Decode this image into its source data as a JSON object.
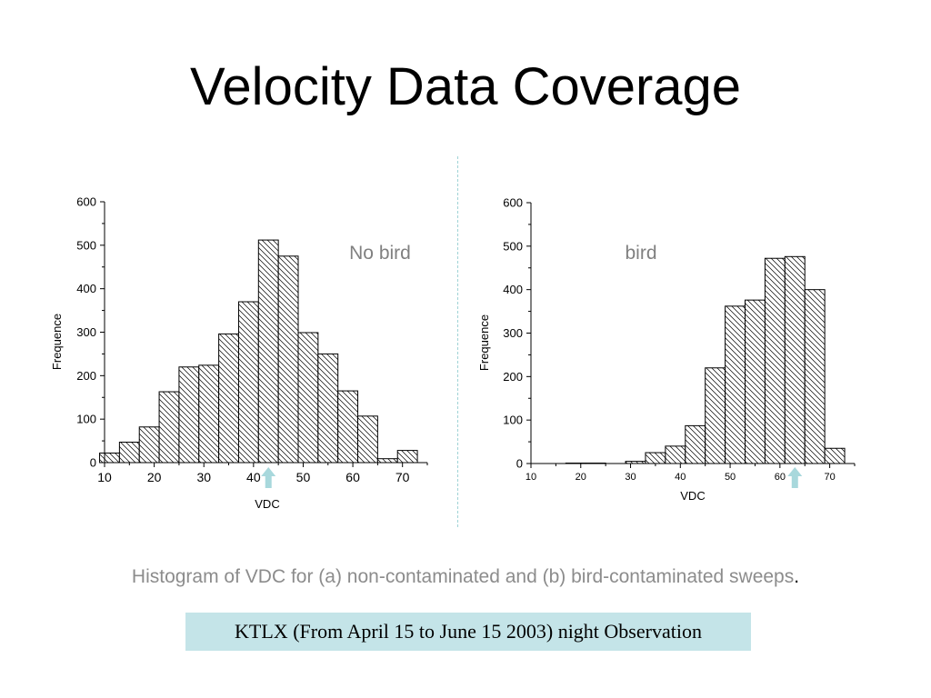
{
  "slide": {
    "title": "Velocity Data Coverage",
    "caption": "Histogram of VDC for (a) non-contaminated and (b) bird-contaminated sweeps",
    "caption_end": ".",
    "footer": "KTLX (From April 15 to June 15 2003) night Observation",
    "colors": {
      "caption": "#8c8c8c",
      "footer_bg": "#c4e4e8",
      "marker_arrow": "#a8d8dc",
      "divider": "#9fd3d6"
    }
  },
  "chart_data": [
    {
      "type": "bar",
      "annotation": "No bird",
      "xlabel": "VDC",
      "ylabel": "Frequence",
      "xlim": [
        10,
        75
      ],
      "ylim": [
        0,
        600
      ],
      "xticks": [
        10,
        20,
        30,
        40,
        50,
        60,
        70
      ],
      "yticks": [
        0,
        100,
        200,
        300,
        400,
        500,
        600
      ],
      "bin_width": 4,
      "bins": [
        {
          "x": 11,
          "value": 22
        },
        {
          "x": 15,
          "value": 47
        },
        {
          "x": 19,
          "value": 82
        },
        {
          "x": 23,
          "value": 163
        },
        {
          "x": 27,
          "value": 220
        },
        {
          "x": 31,
          "value": 224
        },
        {
          "x": 35,
          "value": 296
        },
        {
          "x": 39,
          "value": 370
        },
        {
          "x": 43,
          "value": 512
        },
        {
          "x": 47,
          "value": 475
        },
        {
          "x": 51,
          "value": 299
        },
        {
          "x": 55,
          "value": 250
        },
        {
          "x": 59,
          "value": 165
        },
        {
          "x": 63,
          "value": 107
        },
        {
          "x": 67,
          "value": 9
        },
        {
          "x": 71,
          "value": 28
        }
      ],
      "marker_x": 43
    },
    {
      "type": "bar",
      "annotation": "bird",
      "xlabel": "VDC",
      "ylabel": "Frequence",
      "xlim": [
        10,
        75
      ],
      "ylim": [
        0,
        600
      ],
      "xticks": [
        10,
        20,
        30,
        40,
        50,
        60,
        70
      ],
      "yticks": [
        0,
        100,
        200,
        300,
        400,
        500,
        600
      ],
      "bin_width": 4,
      "bins": [
        {
          "x": 19,
          "value": 1
        },
        {
          "x": 23,
          "value": 1
        },
        {
          "x": 31,
          "value": 5
        },
        {
          "x": 35,
          "value": 25
        },
        {
          "x": 39,
          "value": 40
        },
        {
          "x": 43,
          "value": 87
        },
        {
          "x": 47,
          "value": 220
        },
        {
          "x": 51,
          "value": 362
        },
        {
          "x": 55,
          "value": 376
        },
        {
          "x": 59,
          "value": 472
        },
        {
          "x": 63,
          "value": 476
        },
        {
          "x": 67,
          "value": 400
        },
        {
          "x": 71,
          "value": 35
        }
      ],
      "marker_x": 63
    }
  ]
}
